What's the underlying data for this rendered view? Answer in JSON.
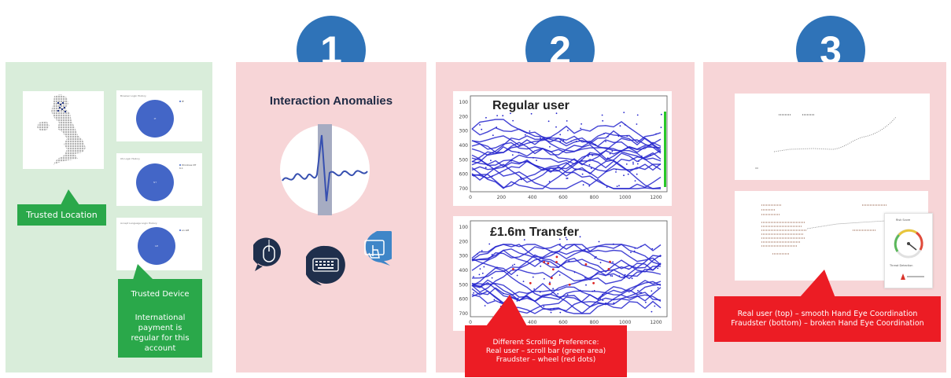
{
  "colors": {
    "green_panel": "#d9edda",
    "pink_panel": "#f7d5d7",
    "badge_blue": "#2f73b8",
    "callout_green": "#2aa84a",
    "callout_red": "#ec1c24",
    "pie_blue": "#4366c7",
    "plot_blue": "#2222cc"
  },
  "panel0": {
    "location_label": "Trusted Location",
    "device_label": "Trusted Device",
    "device_note": "International payment is regular for this account",
    "cards": [
      {
        "title": "Browser Login History",
        "legend": "IE",
        "pie_label": "IE"
      },
      {
        "title": "OS Login History",
        "legend": "Windows NT 6.1",
        "pie_label": "NT"
      },
      {
        "title": "Accept Language Login History",
        "legend": "en-GB",
        "pie_label": "GB"
      }
    ]
  },
  "panel1": {
    "badge": "1",
    "title": "Interaction Anomalies",
    "icons": [
      "mouse-icon",
      "keyboard-icon",
      "touchscreen-icon"
    ]
  },
  "panel2": {
    "badge": "2",
    "top_plot_label": "Regular user",
    "bottom_plot_label": "£1.6m Transfer",
    "x_ticks": [
      "0",
      "200",
      "400",
      "600",
      "800",
      "1000",
      "1200"
    ],
    "y_ticks": [
      "100",
      "200",
      "300",
      "400",
      "500",
      "600",
      "700"
    ],
    "callout_lines": [
      "Different Scrolling Preference:",
      "Real user – scroll bar (green area)",
      "Fraudster – wheel (red dots)"
    ]
  },
  "panel3": {
    "badge": "3",
    "risk_title": "Risk Score",
    "threat_title": "Threat Detection",
    "callout_lines": [
      "Real user (top) – smooth Hand Eye Coordination",
      "Fraudster (bottom) – broken Hand Eye Coordination"
    ]
  }
}
